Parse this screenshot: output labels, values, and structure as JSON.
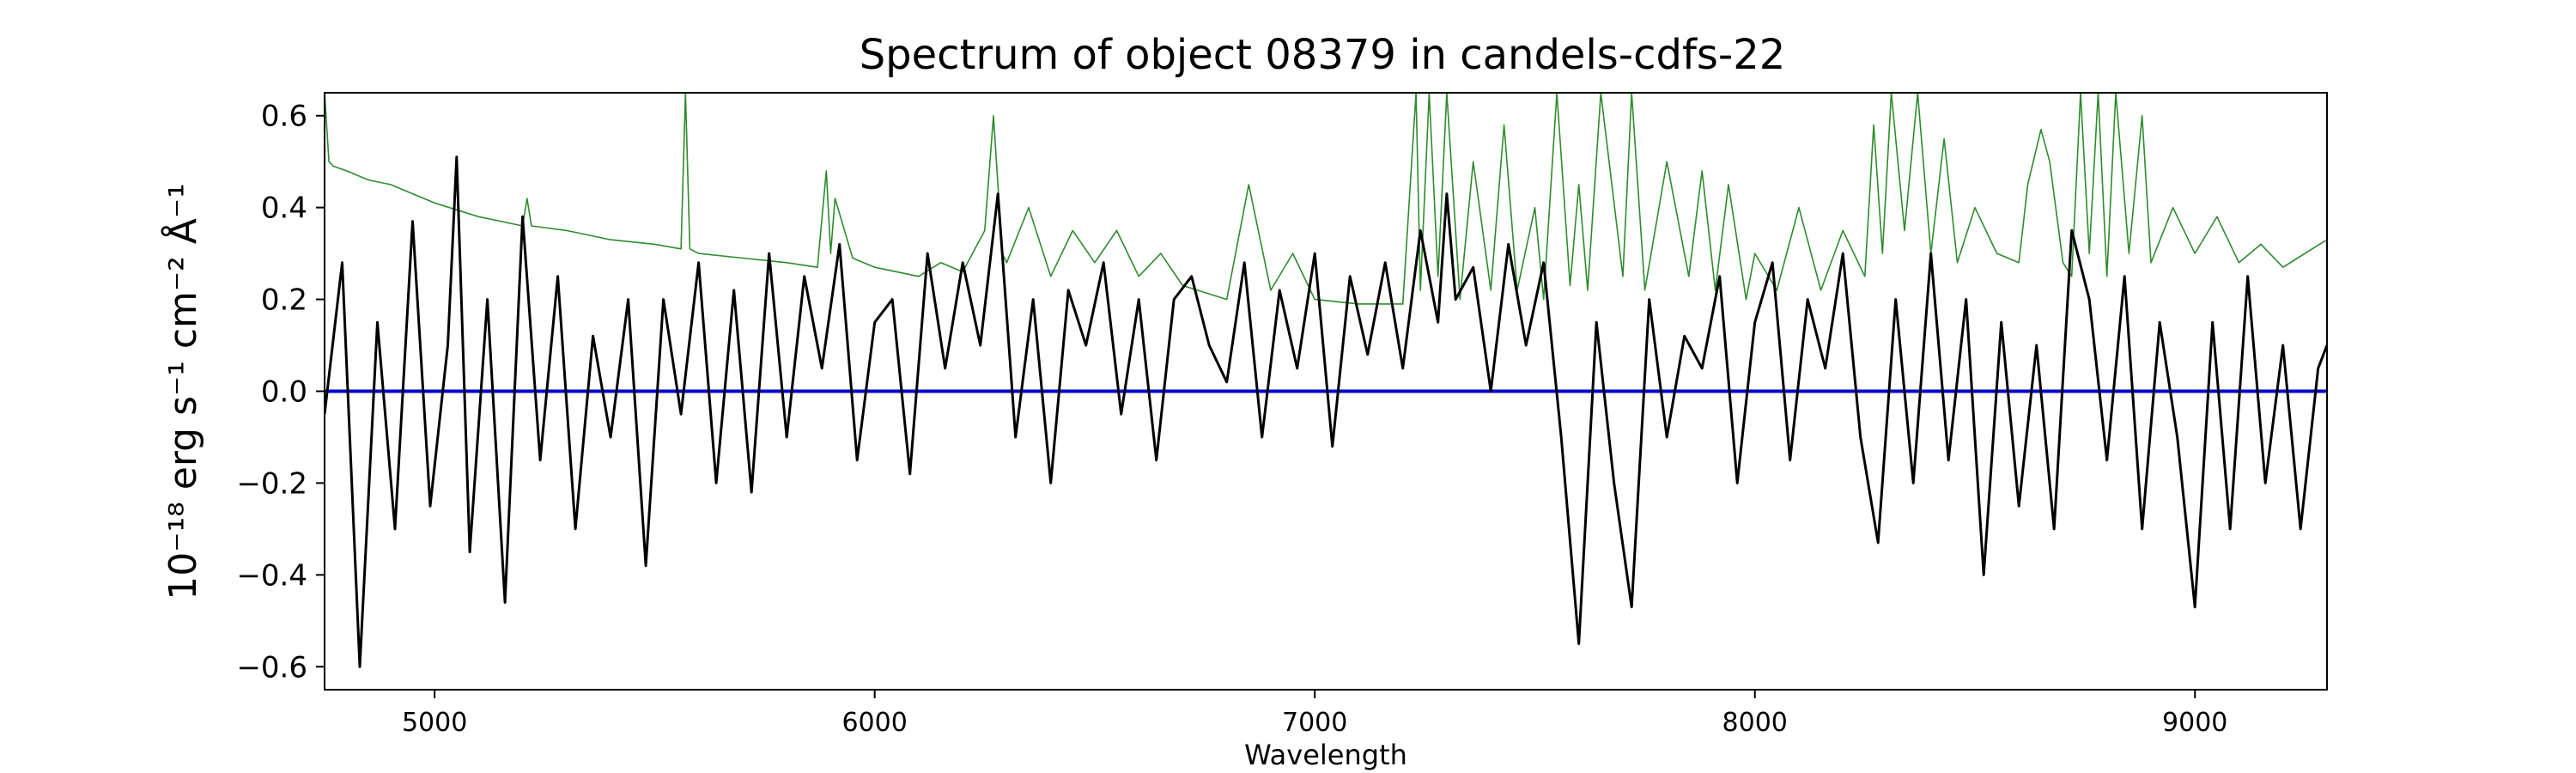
{
  "chart_data": {
    "type": "line",
    "title": "Spectrum of object 08379 in candels-cdfs-22",
    "xlabel": "Wavelength",
    "ylabel": "10⁻¹⁸ erg s⁻¹ cm⁻² Å⁻¹",
    "xlim": [
      4750,
      9300
    ],
    "ylim": [
      -0.65,
      0.65
    ],
    "x_ticks": [
      5000,
      6000,
      7000,
      8000,
      9000
    ],
    "x_tick_labels": [
      "5000",
      "6000",
      "7000",
      "8000",
      "9000"
    ],
    "y_ticks": [
      -0.6,
      -0.4,
      -0.2,
      0.0,
      0.2,
      0.4,
      0.6
    ],
    "y_tick_labels": [
      "−0.6",
      "−0.4",
      "−0.2",
      "0.0",
      "0.2",
      "0.4",
      "0.6"
    ],
    "grid": false,
    "series": [
      {
        "role": "flux",
        "color": "#000000",
        "x": [
          4750,
          4790,
          4830,
          4870,
          4910,
          4950,
          4990,
          5030,
          5050,
          5080,
          5120,
          5160,
          5200,
          5240,
          5280,
          5320,
          5360,
          5400,
          5440,
          5480,
          5520,
          5560,
          5600,
          5640,
          5680,
          5720,
          5760,
          5800,
          5840,
          5880,
          5920,
          5960,
          6000,
          6040,
          6080,
          6120,
          6160,
          6200,
          6240,
          6280,
          6320,
          6360,
          6400,
          6440,
          6480,
          6520,
          6560,
          6600,
          6640,
          6680,
          6720,
          6760,
          6800,
          6840,
          6880,
          6920,
          6960,
          7000,
          7040,
          7080,
          7120,
          7160,
          7200,
          7240,
          7280,
          7300,
          7320,
          7360,
          7400,
          7440,
          7480,
          7520,
          7560,
          7600,
          7640,
          7680,
          7720,
          7760,
          7800,
          7840,
          7880,
          7920,
          7960,
          8000,
          8040,
          8080,
          8120,
          8160,
          8200,
          8240,
          8280,
          8320,
          8360,
          8400,
          8440,
          8480,
          8520,
          8560,
          8600,
          8640,
          8680,
          8720,
          8760,
          8800,
          8840,
          8880,
          8920,
          8960,
          9000,
          9040,
          9080,
          9120,
          9160,
          9200,
          9240,
          9280,
          9300
        ],
        "y": [
          -0.05,
          0.28,
          -0.6,
          0.15,
          -0.3,
          0.37,
          -0.25,
          0.1,
          0.51,
          -0.35,
          0.2,
          -0.46,
          0.38,
          -0.15,
          0.25,
          -0.3,
          0.12,
          -0.1,
          0.2,
          -0.38,
          0.2,
          -0.05,
          0.28,
          -0.2,
          0.22,
          -0.22,
          0.3,
          -0.1,
          0.25,
          0.05,
          0.32,
          -0.15,
          0.15,
          0.2,
          -0.18,
          0.3,
          0.05,
          0.28,
          0.1,
          0.43,
          -0.1,
          0.2,
          -0.2,
          0.22,
          0.1,
          0.28,
          -0.05,
          0.2,
          -0.15,
          0.2,
          0.25,
          0.1,
          0.02,
          0.28,
          -0.1,
          0.22,
          0.05,
          0.3,
          -0.12,
          0.25,
          0.08,
          0.28,
          0.05,
          0.35,
          0.15,
          0.43,
          0.2,
          0.27,
          0.0,
          0.32,
          0.1,
          0.28,
          -0.1,
          -0.55,
          0.15,
          -0.2,
          -0.47,
          0.2,
          -0.1,
          0.12,
          0.05,
          0.25,
          -0.2,
          0.15,
          0.28,
          -0.15,
          0.2,
          0.05,
          0.3,
          -0.1,
          -0.33,
          0.2,
          -0.2,
          0.3,
          -0.15,
          0.2,
          -0.4,
          0.15,
          -0.25,
          0.1,
          -0.3,
          0.35,
          0.2,
          -0.15,
          0.25,
          -0.3,
          0.15,
          -0.1,
          -0.47,
          0.15,
          -0.3,
          0.25,
          -0.2,
          0.1,
          -0.3,
          0.05,
          0.1
        ]
      },
      {
        "role": "error",
        "color": "#2e8b2e",
        "x": [
          4750,
          4760,
          4770,
          4800,
          4850,
          4900,
          4950,
          5000,
          5100,
          5200,
          5210,
          5220,
          5300,
          5400,
          5500,
          5560,
          5570,
          5580,
          5600,
          5700,
          5800,
          5870,
          5890,
          5900,
          5910,
          5950,
          6000,
          6100,
          6150,
          6200,
          6250,
          6270,
          6290,
          6300,
          6350,
          6400,
          6450,
          6500,
          6550,
          6600,
          6650,
          6700,
          6800,
          6850,
          6900,
          6950,
          7000,
          7100,
          7200,
          7230,
          7240,
          7260,
          7280,
          7300,
          7330,
          7360,
          7400,
          7430,
          7460,
          7500,
          7520,
          7550,
          7580,
          7600,
          7620,
          7650,
          7700,
          7720,
          7750,
          7800,
          7850,
          7880,
          7910,
          7940,
          7980,
          8000,
          8050,
          8100,
          8150,
          8200,
          8250,
          8270,
          8290,
          8310,
          8340,
          8370,
          8400,
          8430,
          8460,
          8500,
          8550,
          8600,
          8620,
          8650,
          8670,
          8700,
          8720,
          8740,
          8760,
          8780,
          8800,
          8820,
          8850,
          8880,
          8900,
          8950,
          9000,
          9050,
          9100,
          9150,
          9200,
          9250,
          9300
        ],
        "y": [
          0.65,
          0.5,
          0.49,
          0.48,
          0.46,
          0.45,
          0.43,
          0.41,
          0.38,
          0.36,
          0.42,
          0.36,
          0.35,
          0.33,
          0.32,
          0.31,
          0.65,
          0.31,
          0.3,
          0.29,
          0.28,
          0.27,
          0.48,
          0.3,
          0.42,
          0.29,
          0.27,
          0.25,
          0.28,
          0.26,
          0.35,
          0.6,
          0.3,
          0.28,
          0.4,
          0.25,
          0.35,
          0.28,
          0.35,
          0.25,
          0.3,
          0.23,
          0.2,
          0.45,
          0.22,
          0.3,
          0.2,
          0.19,
          0.19,
          0.65,
          0.22,
          0.65,
          0.25,
          0.65,
          0.2,
          0.5,
          0.22,
          0.58,
          0.22,
          0.4,
          0.2,
          0.65,
          0.23,
          0.45,
          0.22,
          0.65,
          0.25,
          0.65,
          0.22,
          0.5,
          0.25,
          0.48,
          0.22,
          0.45,
          0.2,
          0.3,
          0.22,
          0.4,
          0.22,
          0.35,
          0.25,
          0.58,
          0.3,
          0.65,
          0.35,
          0.65,
          0.3,
          0.55,
          0.28,
          0.4,
          0.3,
          0.28,
          0.45,
          0.57,
          0.5,
          0.28,
          0.25,
          0.65,
          0.3,
          0.65,
          0.25,
          0.65,
          0.3,
          0.6,
          0.28,
          0.4,
          0.3,
          0.38,
          0.28,
          0.32,
          0.27,
          0.3,
          0.33
        ]
      },
      {
        "role": "zero-line",
        "color": "#0000cc",
        "x": [
          4750,
          9300
        ],
        "y": [
          0.0,
          0.0
        ]
      }
    ]
  }
}
